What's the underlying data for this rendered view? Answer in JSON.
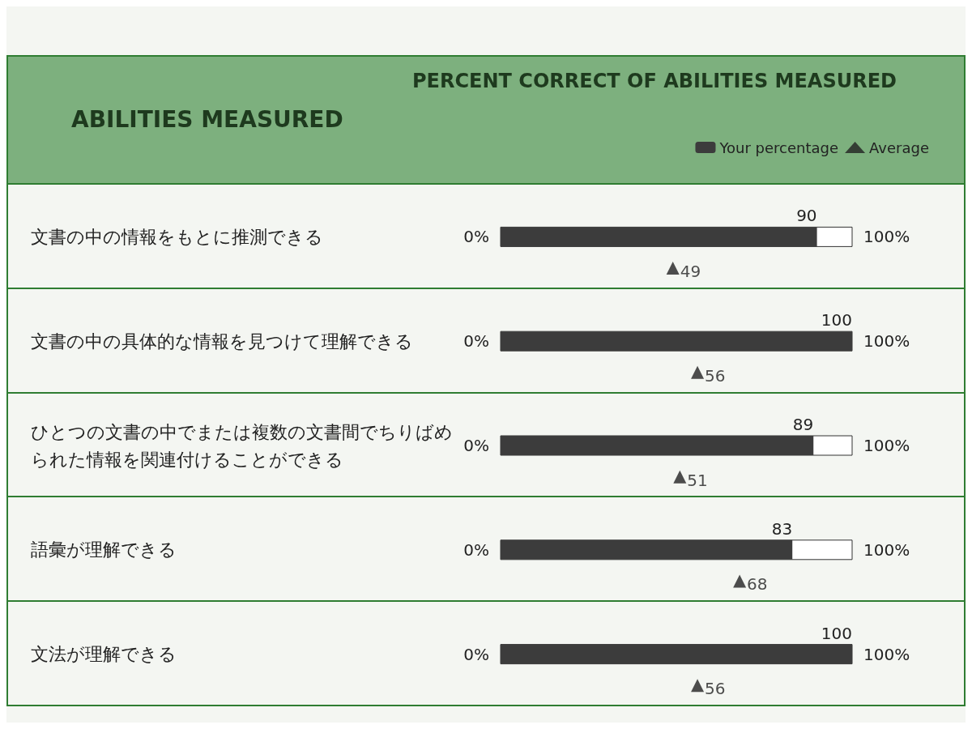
{
  "chart_data": {
    "type": "bar",
    "orientation": "horizontal",
    "title": "PERCENT CORRECT OF ABILITIES MEASURED",
    "ylabel": "ABILITIES MEASURED",
    "categories": [
      "文書の中の情報をもとに推測できる",
      "文書の中の具体的な情報を見つけて理解できる",
      "ひとつの文書の中でまたは複数の文書間でちりばめられた情報を関連付けることができる",
      "語彙が理解できる",
      "文法が理解できる"
    ],
    "series": [
      {
        "name": "Your percentage",
        "color": "#3c3c3c",
        "values": [
          90,
          100,
          89,
          83,
          100
        ]
      },
      {
        "name": "Average",
        "type": "scatter",
        "color": "#222222",
        "values": [
          49,
          56,
          51,
          68,
          56
        ]
      }
    ],
    "xlim": [
      0,
      100
    ],
    "annotations": [
      "0%",
      "100%"
    ],
    "data_labels": true,
    "marker": "triangle",
    "legend": "top right"
  }
}
